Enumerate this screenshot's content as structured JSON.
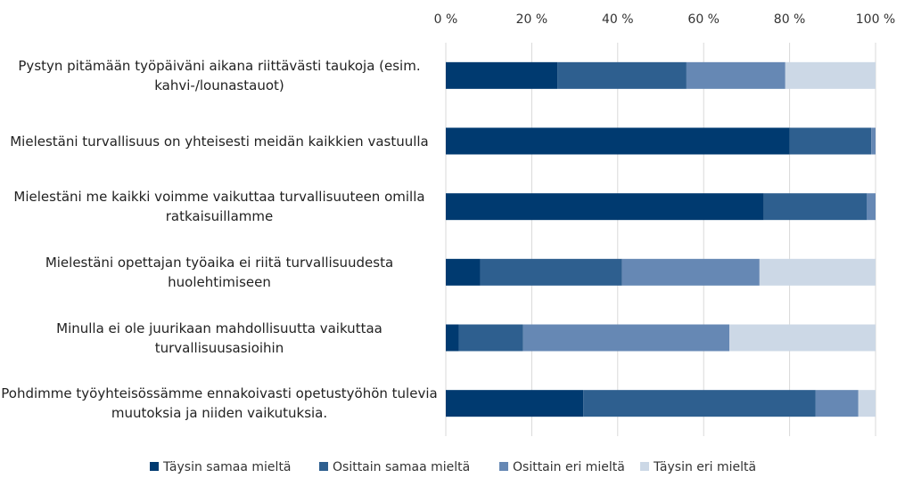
{
  "chart_data": {
    "type": "stacked_barh",
    "categories": [
      "Pystyn pitämään työpäiväni aikana riittävästi taukoja (esim. kahvi-/lounastauot)",
      "Mielestäni turvallisuus on yhteisesti meidän kaikkien vastuulla",
      "Mielestäni me kaikki voimme vaikuttaa turvallisuuteen omilla ratkaisuillamme",
      "Mielestäni opettajan työaika ei riitä turvallisuudesta huolehtimiseen",
      "Minulla ei ole juurikaan mahdollisuutta vaikuttaa turvallisuusasioihin",
      "Pohdimme työyhteisössämme ennakoivasti opetustyöhön tulevia muutoksia ja niiden vaikutuksia."
    ],
    "series": [
      {
        "name": "Täysin samaa mieltä",
        "color": "#003a70",
        "values": [
          26,
          80,
          74,
          8,
          3,
          32
        ]
      },
      {
        "name": "Osittain samaa mieltä",
        "color": "#2e5f8f",
        "values": [
          30,
          19,
          24,
          33,
          15,
          54
        ]
      },
      {
        "name": "Osittain eri mieltä",
        "color": "#6688b4",
        "values": [
          23,
          1,
          2,
          32,
          48,
          10
        ]
      },
      {
        "name": "Täysin eri mieltä",
        "color": "#ccd8e6",
        "values": [
          21,
          0,
          0,
          27,
          34,
          4
        ]
      }
    ],
    "xlim": [
      0,
      100
    ],
    "xticks": [
      {
        "value": 0,
        "label": "0 %"
      },
      {
        "value": 20,
        "label": "20 %"
      },
      {
        "value": 40,
        "label": "40 %"
      },
      {
        "value": 60,
        "label": "60 %"
      },
      {
        "value": 80,
        "label": "80 %"
      },
      {
        "value": 100,
        "label": "100 %"
      }
    ],
    "grid": true,
    "legend": "bottom"
  }
}
